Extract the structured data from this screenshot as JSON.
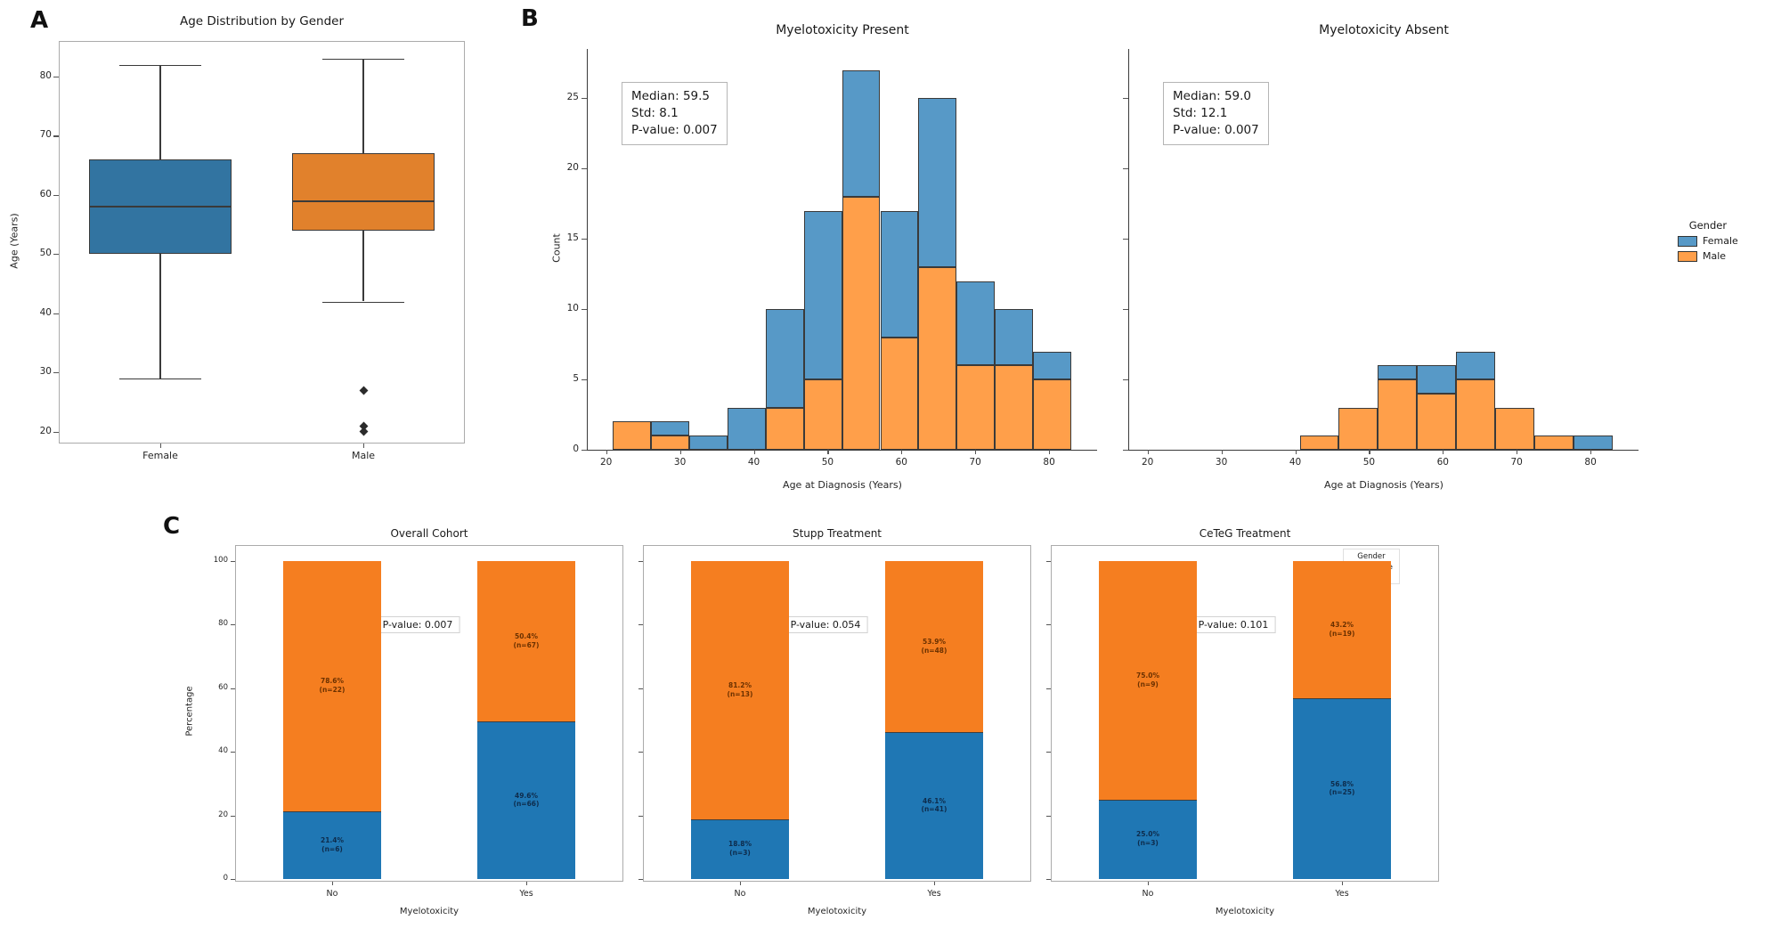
{
  "panel_labels": {
    "a": "A",
    "b": "B",
    "c": "C"
  },
  "colors": {
    "box_female": "#3274a1",
    "box_male": "#e1812c",
    "hist_female": "#5799c7",
    "hist_male": "#ff9f4a",
    "hist_edge": "#3a3a3a",
    "bar_female": "#1f77b4",
    "bar_male": "#f57e20",
    "axis": "#3a3a3a",
    "frame": "#ababab",
    "tick_text": "#262626"
  },
  "legend_b": {
    "title": "Gender",
    "items": [
      {
        "label": "Female",
        "color": "#5799c7"
      },
      {
        "label": "Male",
        "color": "#ff9f4a"
      }
    ]
  },
  "legend_c": {
    "title": "Gender",
    "items": [
      {
        "label": "Female",
        "color": "#1f77b4"
      },
      {
        "label": "Male",
        "color": "#f57e20"
      }
    ]
  },
  "chart_data": [
    {
      "id": "age-boxplot",
      "type": "box",
      "title": "Age Distribution by Gender",
      "ylabel": "Age (Years)",
      "categories": [
        "Female",
        "Male"
      ],
      "ylim": [
        18,
        86
      ],
      "yticks": [
        20,
        30,
        40,
        50,
        60,
        70,
        80
      ],
      "boxes": [
        {
          "category": "Female",
          "q1": 50,
          "median": 58,
          "q3": 66,
          "whisker_low": 29,
          "whisker_high": 82,
          "outliers": []
        },
        {
          "category": "Male",
          "q1": 54,
          "median": 59,
          "q3": 67,
          "whisker_low": 42,
          "whisker_high": 83,
          "outliers": [
            27,
            21,
            20
          ]
        }
      ]
    },
    {
      "id": "hist-myelotoxicity-present",
      "type": "bar",
      "subtype": "stacked-histogram",
      "title": "Myelotoxicity Present",
      "xlabel": "Age at Diagnosis (Years)",
      "ylabel": "Count",
      "xlim": [
        17.5,
        86.5
      ],
      "ylim": [
        0,
        28.5
      ],
      "xticks": [
        20,
        30,
        40,
        50,
        60,
        70,
        80
      ],
      "yticks": [
        0,
        5,
        10,
        15,
        20,
        25
      ],
      "bin_start": 20.9,
      "bin_width": 5.175,
      "series": [
        {
          "name": "Male",
          "values": [
            2,
            1,
            0,
            0,
            3,
            5,
            18,
            8,
            13,
            6,
            6,
            5
          ]
        },
        {
          "name": "Female",
          "values": [
            0,
            1,
            1,
            3,
            7,
            12,
            9,
            9,
            12,
            6,
            4,
            2
          ]
        }
      ],
      "stats_box": {
        "median": "Median: 59.5",
        "std": "Std: 8.1",
        "pvalue": "P-value: 0.007"
      }
    },
    {
      "id": "hist-myelotoxicity-absent",
      "type": "bar",
      "subtype": "stacked-histogram",
      "title": "Myelotoxicity Absent",
      "xlabel": "Age at Diagnosis (Years)",
      "xlim": [
        17.5,
        86.5
      ],
      "ylim": [
        0,
        28.5
      ],
      "xticks": [
        20,
        30,
        40,
        50,
        60,
        70,
        80
      ],
      "yticks": [
        0,
        5,
        10,
        15,
        20,
        25
      ],
      "bin_start": 40.6,
      "bin_width": 5.3,
      "series": [
        {
          "name": "Male",
          "values": [
            1,
            3,
            5,
            4,
            5,
            3,
            1,
            0
          ]
        },
        {
          "name": "Female",
          "values": [
            0,
            0,
            1,
            2,
            2,
            0,
            0,
            1
          ]
        }
      ],
      "stats_box": {
        "median": "Median: 59.0",
        "std": "Std: 12.1",
        "pvalue": "P-value: 0.007"
      }
    },
    {
      "id": "stacked-overall-cohort",
      "type": "bar",
      "subtype": "stacked-percent",
      "title": "Overall Cohort",
      "xlabel": "Myelotoxicity",
      "ylabel": "Percentage",
      "categories": [
        "No",
        "Yes"
      ],
      "yticks": [
        0,
        20,
        40,
        60,
        80,
        100
      ],
      "pvalue_label": "P-value: 0.007",
      "bars": [
        {
          "category": "No",
          "segments": [
            {
              "name": "Female",
              "pct": 21.4,
              "label": "21.4%",
              "n": "(n=6)"
            },
            {
              "name": "Male",
              "pct": 78.6,
              "label": "78.6%",
              "n": "(n=22)"
            }
          ]
        },
        {
          "category": "Yes",
          "segments": [
            {
              "name": "Female",
              "pct": 49.6,
              "label": "49.6%",
              "n": "(n=66)"
            },
            {
              "name": "Male",
              "pct": 50.4,
              "label": "50.4%",
              "n": "(n=67)"
            }
          ]
        }
      ]
    },
    {
      "id": "stacked-stupp-treatment",
      "type": "bar",
      "subtype": "stacked-percent",
      "title": "Stupp Treatment",
      "xlabel": "Myelotoxicity",
      "categories": [
        "No",
        "Yes"
      ],
      "yticks": [
        0,
        20,
        40,
        60,
        80,
        100
      ],
      "pvalue_label": "P-value: 0.054",
      "bars": [
        {
          "category": "No",
          "segments": [
            {
              "name": "Female",
              "pct": 18.8,
              "label": "18.8%",
              "n": "(n=3)"
            },
            {
              "name": "Male",
              "pct": 81.2,
              "label": "81.2%",
              "n": "(n=13)"
            }
          ]
        },
        {
          "category": "Yes",
          "segments": [
            {
              "name": "Female",
              "pct": 46.1,
              "label": "46.1%",
              "n": "(n=41)"
            },
            {
              "name": "Male",
              "pct": 53.9,
              "label": "53.9%",
              "n": "(n=48)"
            }
          ]
        }
      ]
    },
    {
      "id": "stacked-ceteg-treatment",
      "type": "bar",
      "subtype": "stacked-percent",
      "title": "CeTeG Treatment",
      "xlabel": "Myelotoxicity",
      "categories": [
        "No",
        "Yes"
      ],
      "yticks": [
        0,
        20,
        40,
        60,
        80,
        100
      ],
      "pvalue_label": "P-value: 0.101",
      "bars": [
        {
          "category": "No",
          "segments": [
            {
              "name": "Female",
              "pct": 25.0,
              "label": "25.0%",
              "n": "(n=3)"
            },
            {
              "name": "Male",
              "pct": 75.0,
              "label": "75.0%",
              "n": "(n=9)"
            }
          ]
        },
        {
          "category": "Yes",
          "segments": [
            {
              "name": "Female",
              "pct": 56.8,
              "label": "56.8%",
              "n": "(n=25)"
            },
            {
              "name": "Male",
              "pct": 43.2,
              "label": "43.2%",
              "n": "(n=19)"
            }
          ]
        }
      ]
    }
  ]
}
